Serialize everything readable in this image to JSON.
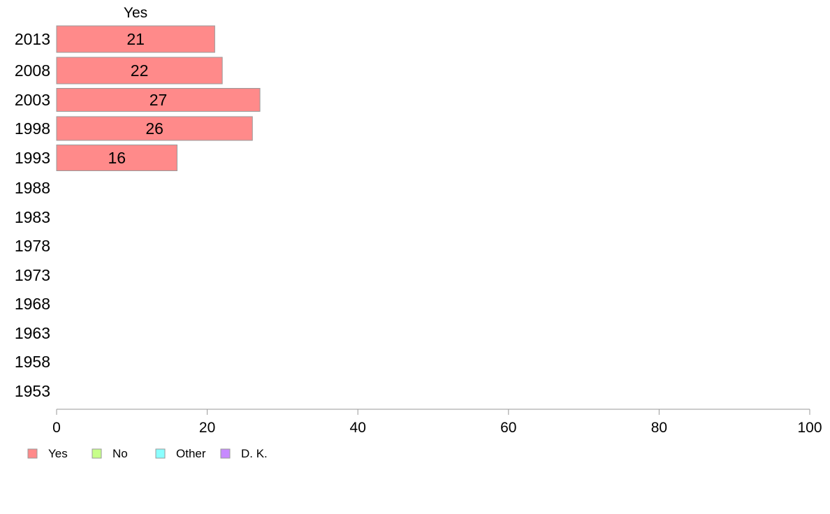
{
  "chart_data": {
    "type": "bar",
    "orientation": "horizontal",
    "categories": [
      "2013",
      "2008",
      "2003",
      "1998",
      "1993",
      "1988",
      "1983",
      "1978",
      "1973",
      "1968",
      "1963",
      "1958",
      "1953"
    ],
    "series": [
      {
        "name": "Yes",
        "color": "#ff8a8a",
        "values": [
          21,
          22,
          27,
          26,
          16,
          null,
          null,
          null,
          null,
          null,
          null,
          null,
          null
        ]
      },
      {
        "name": "No",
        "color": "#c7ff8a",
        "values": [
          null,
          null,
          null,
          null,
          null,
          null,
          null,
          null,
          null,
          null,
          null,
          null,
          null
        ]
      },
      {
        "name": "Other",
        "color": "#8affff",
        "values": [
          null,
          null,
          null,
          null,
          null,
          null,
          null,
          null,
          null,
          null,
          null,
          null,
          null
        ]
      },
      {
        "name": "D. K.",
        "color": "#c78aff",
        "values": [
          null,
          null,
          null,
          null,
          null,
          null,
          null,
          null,
          null,
          null,
          null,
          null,
          null
        ]
      }
    ],
    "series_header": "Yes",
    "xlim": [
      0,
      100
    ],
    "xticks": [
      0,
      20,
      40,
      60,
      80,
      100
    ],
    "grid": false,
    "legend_position": "bottom-left",
    "title": "",
    "xlabel": "",
    "ylabel": ""
  }
}
